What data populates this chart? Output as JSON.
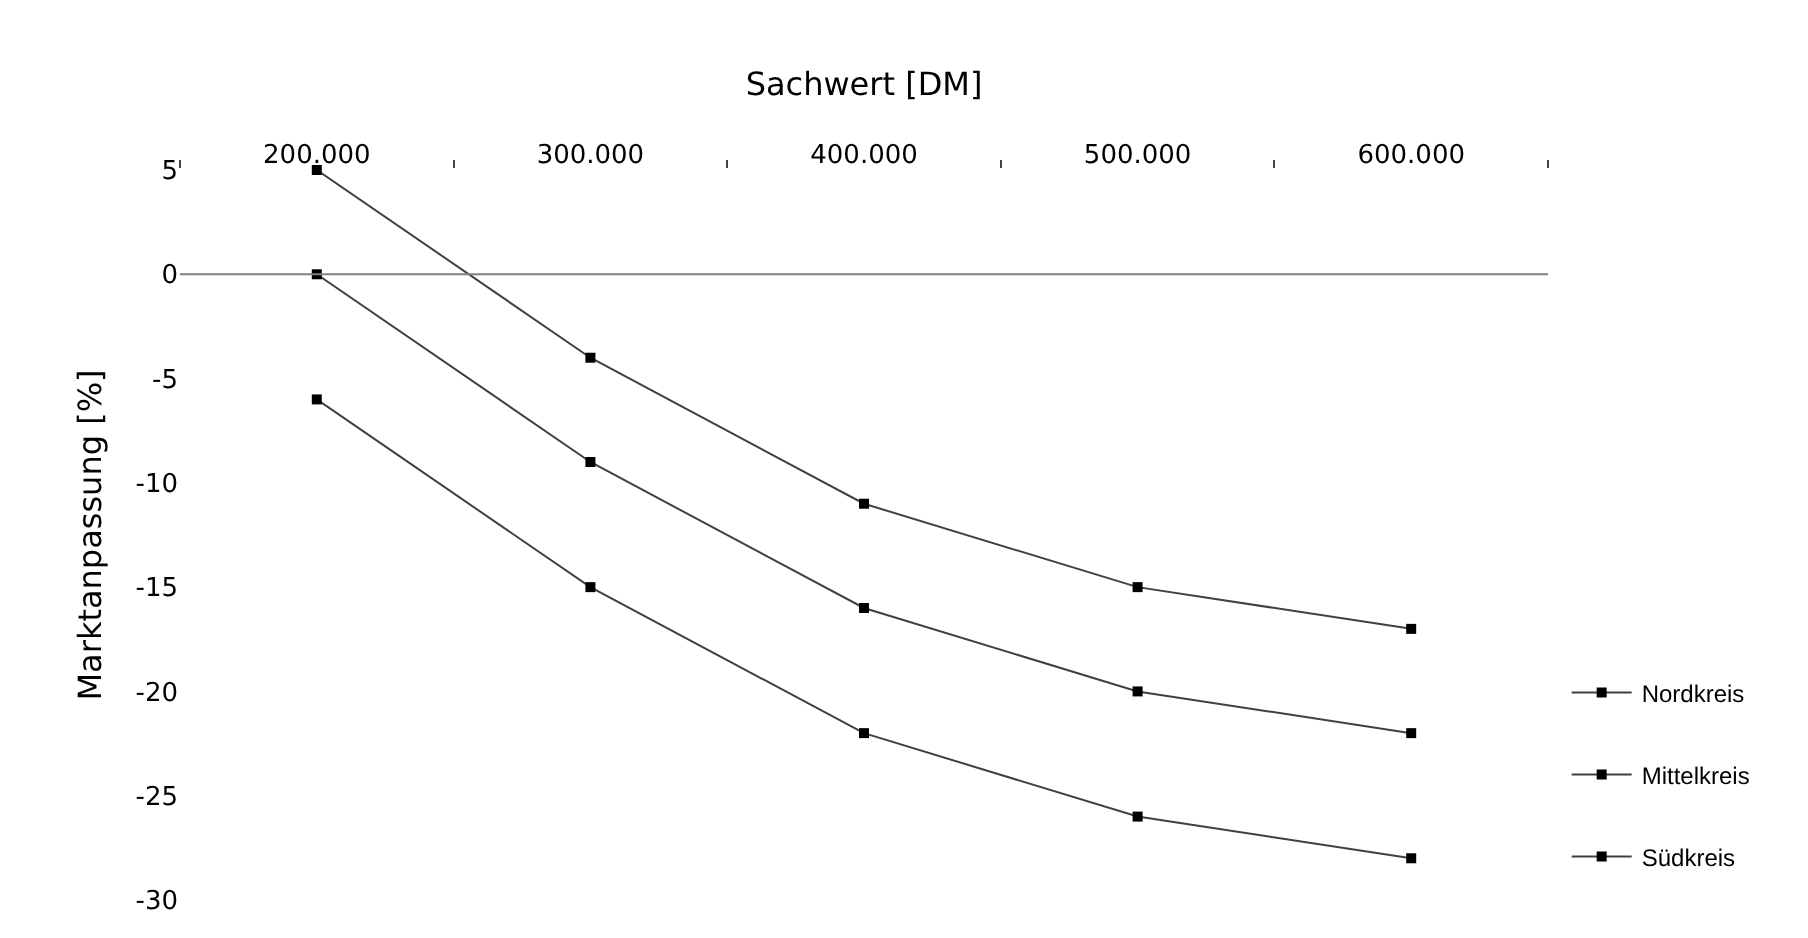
{
  "chart_data": {
    "type": "line",
    "xlabel": "Sachwert [DM]",
    "ylabel": "Marktanpassung [%]",
    "categories": [
      "200.000",
      "300.000",
      "400.000",
      "500.000",
      "600.000"
    ],
    "series": [
      {
        "name": "Nordkreis",
        "color": "#404040",
        "values": [
          5,
          -4,
          -11,
          -15,
          -17
        ]
      },
      {
        "name": "Mittelkreis",
        "color": "#404040",
        "values": [
          0,
          -9,
          -16,
          -20,
          -22
        ]
      },
      {
        "name": "Südkreis",
        "color": "#404040",
        "values": [
          -6,
          -15,
          -22,
          -26,
          -28
        ]
      }
    ],
    "ylim": [
      -30,
      5
    ],
    "yticks": [
      5,
      0,
      -5,
      -10,
      -15,
      -20,
      -25,
      -30
    ],
    "ref_lines": [
      {
        "axis": "y",
        "value": 0,
        "color": "#808080"
      }
    ],
    "marker": "square",
    "line_style": "solid",
    "legend": "right"
  }
}
